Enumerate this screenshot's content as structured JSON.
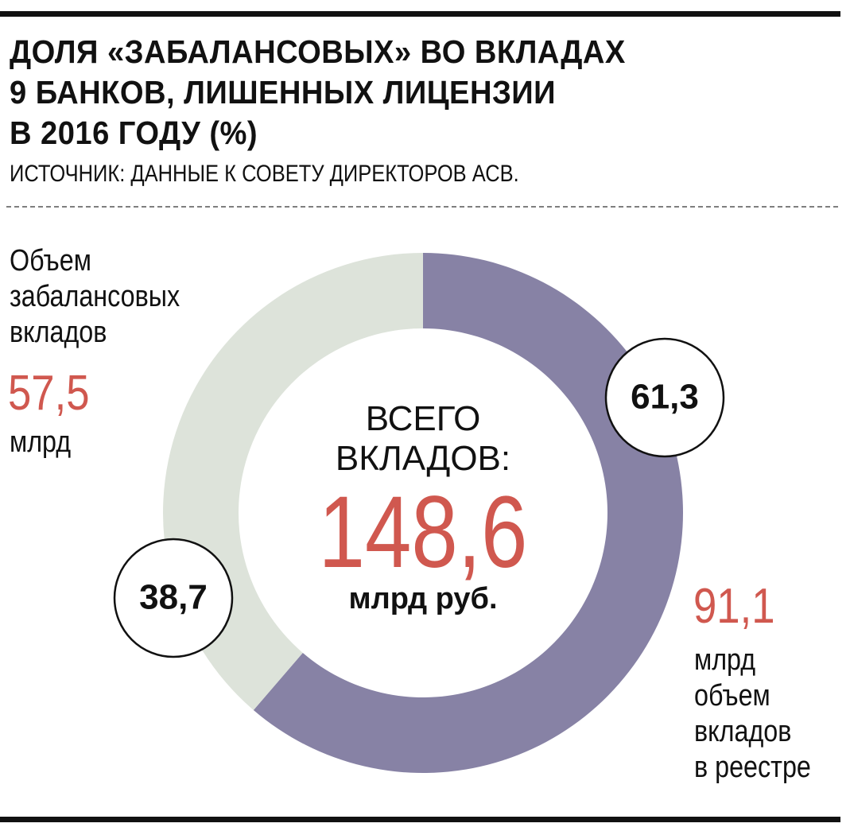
{
  "chart_data": {
    "type": "donut",
    "title": "ДОЛЯ «ЗАБАЛАНСОВЫХ» ВО ВКЛАДАХ\n9 БАНКОВ, ЛИШЕННЫХ ЛИЦЕНЗИИ\nВ 2016 ГОДУ (%)",
    "subtitle": "ИСТОЧНИК: ДАННЫЕ К СОВЕТУ ДИРЕКТОРОВ АСВ.",
    "categories": [
      "объем\nвкладов\nв реестре",
      "Объем\nзабалансовых\nвкладов"
    ],
    "values": [
      61.3,
      38.7
    ],
    "value_labels": [
      "61,3",
      "38,7"
    ],
    "colors": [
      "#8782a5",
      "#dde3da"
    ],
    "amounts": [
      {
        "value": 91.1,
        "label": "91,1"
      },
      {
        "value": 57.5,
        "label": "57,5"
      }
    ],
    "amount_unit": "млрд",
    "center_label": "ВСЕГО\nВКЛАДОВ:",
    "total": {
      "value": 148.6,
      "label": "148,6"
    },
    "total_unit": "млрд руб.",
    "accent_color": "#d0584f"
  }
}
